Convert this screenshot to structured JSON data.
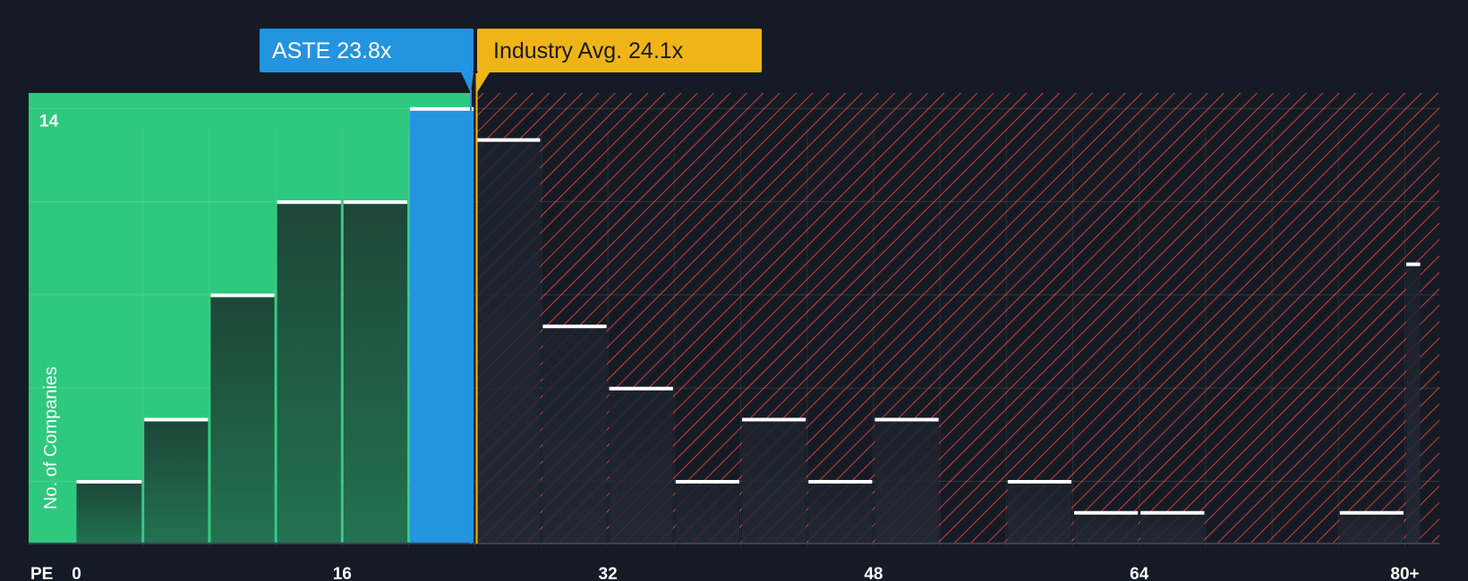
{
  "chart_data": {
    "type": "bar",
    "title": "",
    "xlabel": "PE",
    "ylabel": "No. of Companies",
    "xlim": [
      0,
      81
    ],
    "x_ticks": [
      {
        "value": 0,
        "label": "0"
      },
      {
        "value": 16,
        "label": "16"
      },
      {
        "value": 32,
        "label": "32"
      },
      {
        "value": 48,
        "label": "48"
      },
      {
        "value": 64,
        "label": "64"
      },
      {
        "value": 80,
        "label": "80+"
      }
    ],
    "ylim": [
      0,
      14.5
    ],
    "y_ticks": [
      {
        "value": 14,
        "label": "14"
      }
    ],
    "grid": true,
    "bins": [
      {
        "start": 0,
        "end": 4,
        "value": 2
      },
      {
        "start": 4,
        "end": 8,
        "value": 4
      },
      {
        "start": 8,
        "end": 12,
        "value": 8
      },
      {
        "start": 12,
        "end": 16,
        "value": 11
      },
      {
        "start": 16,
        "end": 20,
        "value": 11
      },
      {
        "start": 20,
        "end": 24,
        "value": 14,
        "highlight": true
      },
      {
        "start": 24,
        "end": 28,
        "value": 13
      },
      {
        "start": 28,
        "end": 32,
        "value": 7
      },
      {
        "start": 32,
        "end": 36,
        "value": 5
      },
      {
        "start": 36,
        "end": 40,
        "value": 2
      },
      {
        "start": 40,
        "end": 44,
        "value": 4
      },
      {
        "start": 44,
        "end": 48,
        "value": 2
      },
      {
        "start": 48,
        "end": 52,
        "value": 4
      },
      {
        "start": 56,
        "end": 60,
        "value": 2
      },
      {
        "start": 60,
        "end": 64,
        "value": 1
      },
      {
        "start": 64,
        "end": 68,
        "value": 1
      },
      {
        "start": 76,
        "end": 80,
        "value": 1
      },
      {
        "start": 80,
        "end": 81,
        "value": 9
      }
    ],
    "company": {
      "label": "ASTE 23.8x",
      "value": 23.8
    },
    "industry": {
      "label": "Industry Avg. 24.1x",
      "value": 24.1
    }
  },
  "colors": {
    "background": "#151b24",
    "undervalued": "#2ec97e",
    "overvalued": "#d43c3c",
    "company": "#2394e0",
    "industry": "#f0b418"
  }
}
